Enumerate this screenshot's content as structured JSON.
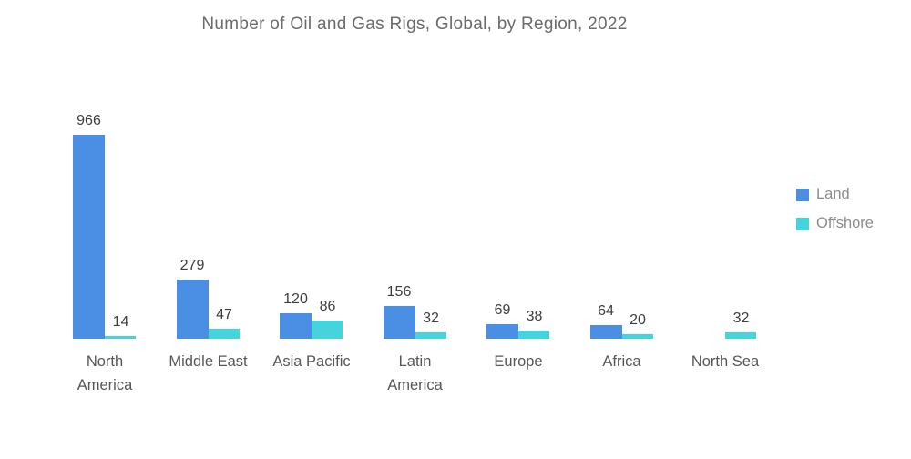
{
  "page": {
    "background_color": "#ffffff"
  },
  "chart_data": {
    "type": "bar",
    "title": "Number of Oil and Gas Rigs, Global, by Region, 2022",
    "categories": [
      "North America",
      "Middle East",
      "Asia Pacific",
      "Latin America",
      "Europe",
      "Africa",
      "North Sea"
    ],
    "category_label_lines": [
      [
        "North",
        "America"
      ],
      [
        "Middle East"
      ],
      [
        "Asia Pacific"
      ],
      [
        "Latin",
        "America"
      ],
      [
        "Europe"
      ],
      [
        "Africa"
      ],
      [
        "North Sea"
      ]
    ],
    "series": [
      {
        "name": "Land",
        "color": "#4A8FE3",
        "values": [
          966,
          279,
          120,
          156,
          69,
          64,
          null
        ]
      },
      {
        "name": "Offshore",
        "color": "#45D4DB",
        "values": [
          14,
          47,
          86,
          32,
          38,
          20,
          32
        ]
      }
    ],
    "value_labels_shown": true,
    "legend_position": "right",
    "grid": false,
    "axes_visible": false,
    "ylim": [
      0,
      1000
    ],
    "colors": {
      "title_text": "#6b6b6b",
      "value_label_text": "#3d3d3d",
      "category_label_text": "#565656",
      "legend_text": "#8c8c8c"
    }
  }
}
